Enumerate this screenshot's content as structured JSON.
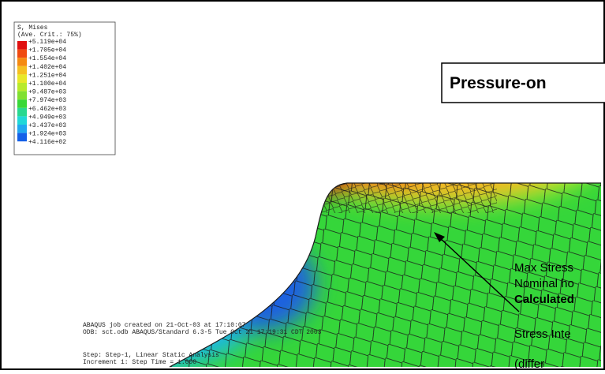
{
  "legend": {
    "title": "S, Mises",
    "subtitle": "(Ave. Crit.: 75%)",
    "levels": [
      "+5.119e+04",
      "+1.705e+04",
      "+1.554e+04",
      "+1.402e+04",
      "+1.251e+04",
      "+1.100e+04",
      "+9.487e+03",
      "+7.974e+03",
      "+6.462e+03",
      "+4.949e+03",
      "+3.437e+03",
      "+1.924e+03",
      "+4.116e+02"
    ]
  },
  "title_box": "Pressure-on",
  "annotations": [
    "Max Stress",
    "Nominal ho",
    "Calculated",
    "Stress Inte",
    "(differ"
  ],
  "info": [
    "ABAQUS job created on 21-Oct-03 at 17:10:07",
    "ODB: sct.odb    ABAQUS/Standard 6.3-5    Tue Oct 21 17:19:31 CDT 2003",
    "Step: Step-1, Linear Static Analysis",
    "Increment      1: Step Time =     1.000"
  ]
}
